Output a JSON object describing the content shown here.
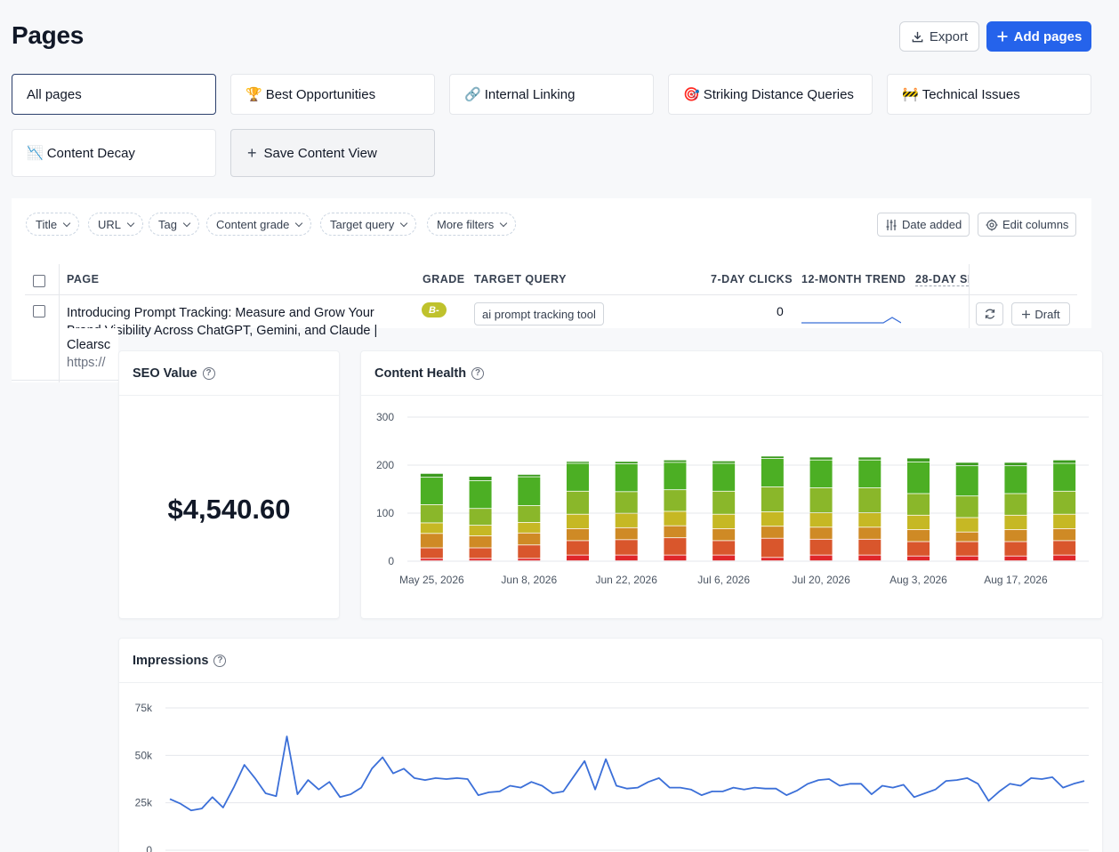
{
  "header": {
    "title": "Pages",
    "export_label": "Export",
    "add_label": "Add pages"
  },
  "views": [
    {
      "label": "All pages",
      "emoji": ""
    },
    {
      "label": "Best Opportunities",
      "emoji": "🏆"
    },
    {
      "label": "Internal Linking",
      "emoji": "🔗"
    },
    {
      "label": "Striking Distance Queries",
      "emoji": "🎯"
    },
    {
      "label": "Technical Issues",
      "emoji": "🚧"
    },
    {
      "label": "Content Decay",
      "emoji": "📉"
    },
    {
      "label": "Save Content View",
      "emoji": "+"
    }
  ],
  "filters": [
    "Title",
    "URL",
    "Tag",
    "Content grade",
    "Target query",
    "More filters"
  ],
  "tools": {
    "date_added": "Date added",
    "edit_columns": "Edit columns"
  },
  "table": {
    "headers": {
      "page": "PAGE",
      "grade": "GRADE",
      "target_query": "TARGET QUERY",
      "clicks": "7-DAY CLICKS",
      "trend": "12-MONTH TREND",
      "sessions": "28-DAY SE"
    },
    "rows": [
      {
        "title_line1": "Introducing Prompt Tracking: Measure and Grow Your",
        "title_line2": "Brand Visibility Across ChatGPT, Gemini, and Claude |",
        "title_line3": "Clearsc",
        "url": "https://",
        "grade": "B-",
        "target_query": "ai prompt tracking tool",
        "clicks": "0",
        "draft_label": "Draft"
      }
    ]
  },
  "seo_card": {
    "title": "SEO Value",
    "value": "$4,540.60"
  },
  "health_card": {
    "title": "Content Health"
  },
  "impressions_card": {
    "title": "Impressions"
  },
  "colors": {
    "accent": "#2563eb",
    "grade_b": "#bfc22c",
    "line": "#3b6fd8"
  },
  "chart_data": [
    {
      "type": "bar",
      "stacked": true,
      "title": "Content Health",
      "ylim": [
        0,
        300
      ],
      "yticks": [
        0,
        100,
        200,
        300
      ],
      "xtick_labels": [
        "May 25, 2026",
        "Jun 8, 2026",
        "Jun 22, 2026",
        "Jul 6, 2026",
        "Jul 20, 2026",
        "Aug 3, 2026",
        "Aug 17, 2026"
      ],
      "categories": [
        "May 25, 2026",
        "Jun 1, 2026",
        "Jun 8, 2026",
        "Jun 15, 2026",
        "Jun 22, 2026",
        "Jun 29, 2026",
        "Jul 6, 2026",
        "Jul 13, 2026",
        "Jul 20, 2026",
        "Jul 27, 2026",
        "Aug 3, 2026",
        "Aug 10, 2026",
        "Aug 17, 2026",
        "Aug 24, 2026"
      ],
      "series": [
        {
          "color": "#e0262a",
          "values": [
            5,
            5,
            5,
            12,
            12,
            12,
            12,
            7,
            12,
            12,
            10,
            10,
            10,
            12
          ]
        },
        {
          "color": "#d9562c",
          "values": [
            22,
            22,
            28,
            30,
            32,
            36,
            30,
            40,
            33,
            33,
            30,
            30,
            30,
            30
          ]
        },
        {
          "color": "#cf8a25",
          "values": [
            30,
            25,
            25,
            25,
            25,
            25,
            25,
            25,
            25,
            25,
            25,
            20,
            25,
            25
          ]
        },
        {
          "color": "#c6b824",
          "values": [
            22,
            22,
            22,
            30,
            30,
            30,
            30,
            30,
            30,
            30,
            30,
            30,
            30,
            30
          ]
        },
        {
          "color": "#8ab72a",
          "values": [
            38,
            35,
            35,
            48,
            45,
            45,
            48,
            52,
            52,
            52,
            45,
            45,
            45,
            48
          ]
        },
        {
          "color": "#4caf24",
          "values": [
            57,
            58,
            60,
            58,
            58,
            57,
            58,
            59,
            58,
            58,
            66,
            63,
            58,
            58
          ]
        },
        {
          "color": "#3a9a1d",
          "values": [
            8,
            9,
            5,
            4,
            5,
            5,
            5,
            5,
            6,
            6,
            8,
            7,
            7,
            7
          ]
        }
      ]
    },
    {
      "type": "line",
      "title": "Impressions",
      "ylim": [
        0,
        75000
      ],
      "ytick_labels": [
        "0",
        "25k",
        "50k",
        "75k"
      ],
      "series": [
        {
          "values": [
            27000,
            24500,
            21000,
            22000,
            28000,
            22500,
            33000,
            45000,
            38000,
            30000,
            28500,
            60000,
            29500,
            37000,
            32000,
            36000,
            28000,
            29500,
            33000,
            43000,
            49000,
            40500,
            43000,
            38000,
            37000,
            38000,
            37500,
            38000,
            37500,
            29000,
            30500,
            31000,
            34000,
            33000,
            36000,
            34000,
            30000,
            31000,
            39000,
            47000,
            32000,
            48000,
            34000,
            32500,
            33000,
            36000,
            38000,
            33000,
            33000,
            32000,
            29000,
            31000,
            31000,
            33000,
            32000,
            33000,
            32500,
            32500,
            29000,
            31500,
            35000,
            37000,
            37500,
            34000,
            35000,
            35000,
            29500,
            34000,
            33000,
            34500,
            28000,
            30000,
            32000,
            36500,
            37000,
            38000,
            35000,
            26000,
            31000,
            35000,
            34000,
            38000,
            37500,
            38500,
            33000,
            35000,
            36500
          ]
        }
      ]
    }
  ]
}
